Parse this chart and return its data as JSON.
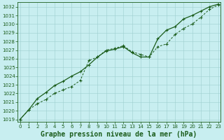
{
  "title": "Graphe pression niveau de la mer (hPa)",
  "bg_color": "#c8eef0",
  "grid_color": "#9ecfcf",
  "line_color": "#1a5c1a",
  "xlabel_color": "#1a5c1a",
  "title_fontsize": 7.0,
  "ylim_min": 1019,
  "ylim_max": 1032.5,
  "xlim_min": -0.3,
  "xlim_max": 23.3,
  "yticks": [
    1019,
    1020,
    1021,
    1022,
    1023,
    1024,
    1025,
    1026,
    1027,
    1028,
    1029,
    1030,
    1031,
    1032
  ],
  "xticks": [
    0,
    1,
    2,
    3,
    4,
    5,
    6,
    7,
    8,
    9,
    10,
    11,
    12,
    13,
    14,
    15,
    16,
    17,
    18,
    19,
    20,
    21,
    22,
    23
  ],
  "line1_x": [
    0,
    1,
    2,
    3,
    4,
    5,
    6,
    7,
    8,
    9,
    10,
    11,
    12,
    13,
    14,
    15,
    16,
    17,
    18,
    19,
    20,
    21,
    22,
    23
  ],
  "line1_y": [
    1019.0,
    1020.1,
    1020.8,
    1021.3,
    1022.0,
    1022.4,
    1022.8,
    1023.5,
    1025.8,
    1026.2,
    1027.0,
    1027.2,
    1027.5,
    1026.8,
    1026.5,
    1026.2,
    1027.4,
    1027.7,
    1028.8,
    1029.5,
    1030.0,
    1030.8,
    1031.7,
    1032.2
  ],
  "line2_x": [
    0,
    1,
    2,
    3,
    4,
    5,
    6,
    7,
    8,
    9,
    10,
    11,
    12,
    13,
    14,
    15,
    16,
    17,
    18,
    19,
    20,
    21,
    22,
    23
  ],
  "line2_y": [
    1019.0,
    1020.1,
    1021.4,
    1022.1,
    1022.9,
    1023.4,
    1024.0,
    1024.5,
    1025.3,
    1026.2,
    1026.9,
    1027.1,
    1027.4,
    1026.7,
    1026.2,
    1026.2,
    1028.3,
    1029.3,
    1029.7,
    1030.6,
    1031.0,
    1031.5,
    1032.0,
    1032.3
  ]
}
